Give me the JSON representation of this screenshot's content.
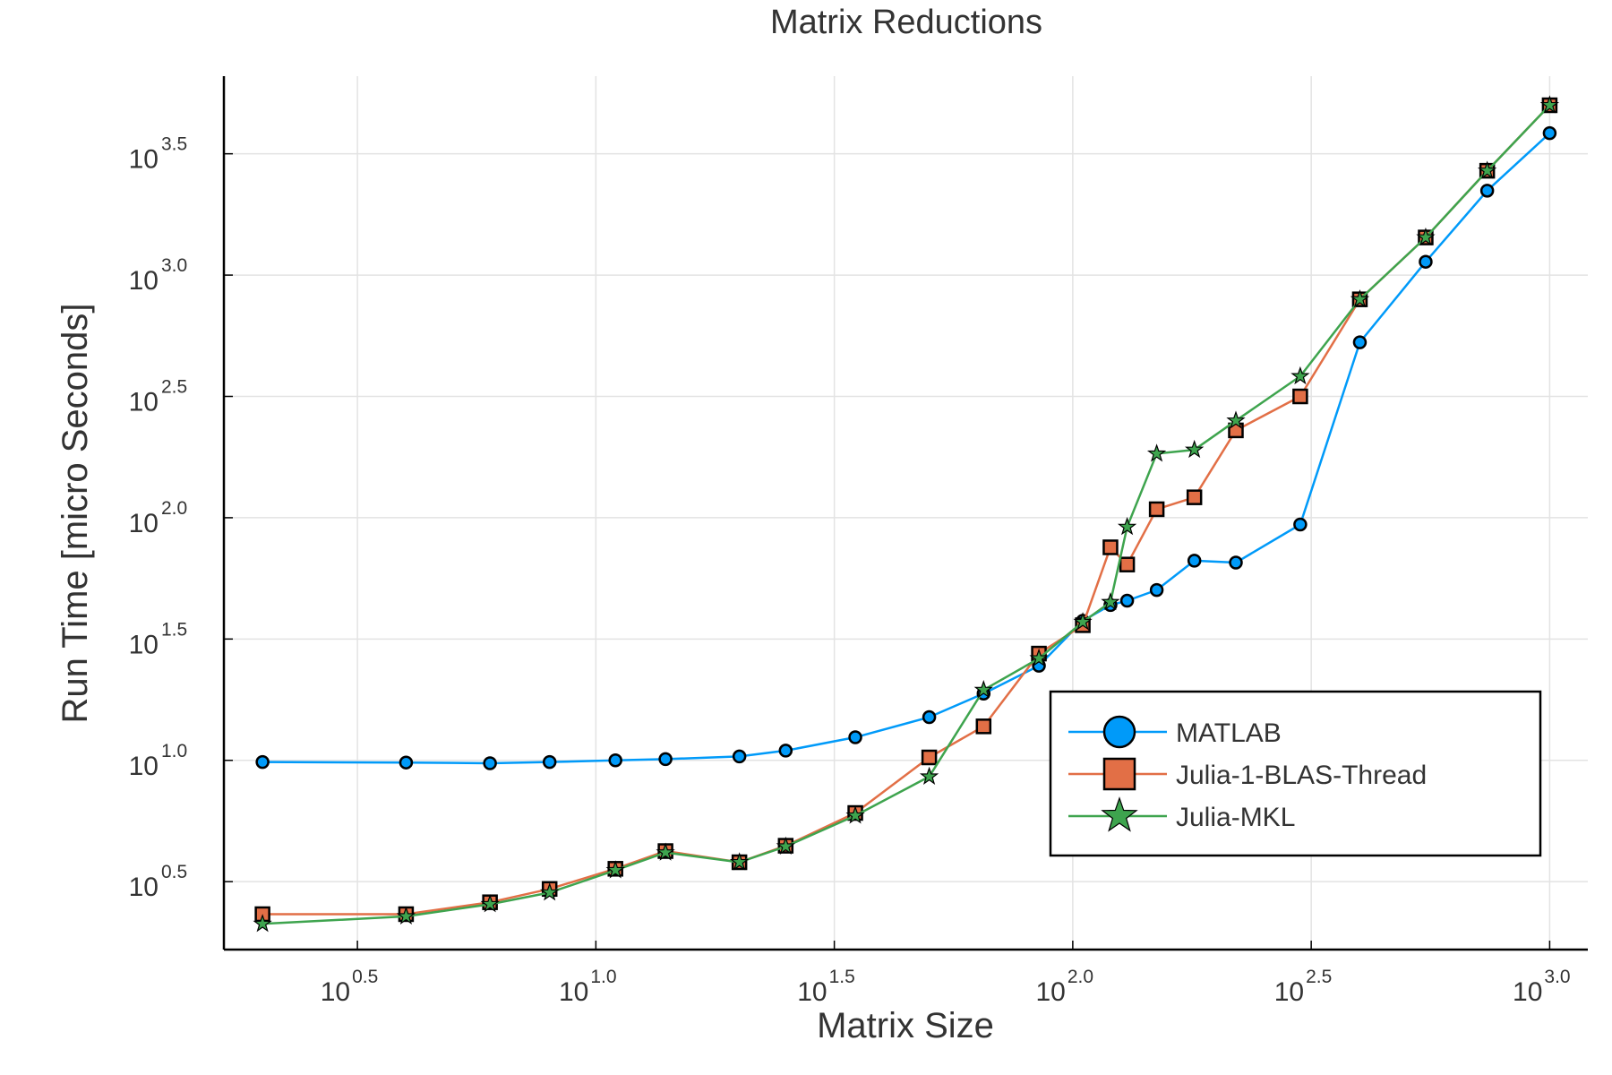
{
  "chart_data": {
    "type": "line",
    "title": "Matrix Reductions",
    "xlabel": "Matrix Size",
    "ylabel": "Run Time  [micro Seconds]",
    "xscale": "log10",
    "yscale": "log10",
    "xlim_log10": [
      0.22,
      3.08
    ],
    "ylim_log10": [
      0.22,
      3.82
    ],
    "x_ticks": [
      {
        "base": "10",
        "exp": "0.5",
        "value": 0.5
      },
      {
        "base": "10",
        "exp": "1.0",
        "value": 1.0
      },
      {
        "base": "10",
        "exp": "1.5",
        "value": 1.5
      },
      {
        "base": "10",
        "exp": "2.0",
        "value": 2.0
      },
      {
        "base": "10",
        "exp": "2.5",
        "value": 2.5
      },
      {
        "base": "10",
        "exp": "3.0",
        "value": 3.0
      }
    ],
    "y_ticks": [
      {
        "base": "10",
        "exp": "0.5",
        "value": 0.5
      },
      {
        "base": "10",
        "exp": "1.0",
        "value": 1.0
      },
      {
        "base": "10",
        "exp": "1.5",
        "value": 1.5
      },
      {
        "base": "10",
        "exp": "2.0",
        "value": 2.0
      },
      {
        "base": "10",
        "exp": "2.5",
        "value": 2.5
      },
      {
        "base": "10",
        "exp": "3.0",
        "value": 3.0
      },
      {
        "base": "10",
        "exp": "3.5",
        "value": 3.5
      }
    ],
    "grid": true,
    "legend_position": "bottom-right",
    "x_log10": [
      0.301,
      0.602,
      0.778,
      0.903,
      1.041,
      1.146,
      1.301,
      1.398,
      1.544,
      1.699,
      1.813,
      1.929,
      2.021,
      2.079,
      2.114,
      2.176,
      2.255,
      2.342,
      2.477,
      2.602,
      2.74,
      2.869,
      3.0
    ],
    "series": [
      {
        "name": "MATLAB",
        "color": "#009AF9",
        "marker": "circle",
        "y_log10": [
          0.993,
          0.991,
          0.988,
          0.993,
          1.0,
          1.005,
          1.016,
          1.04,
          1.095,
          1.178,
          1.275,
          1.39,
          1.575,
          1.64,
          1.658,
          1.702,
          1.823,
          1.815,
          1.972,
          2.723,
          3.055,
          3.348,
          3.585
        ]
      },
      {
        "name": "Julia-1-BLAS-Thread",
        "color": "#E26F46",
        "marker": "square",
        "y_log10": [
          0.366,
          0.366,
          0.415,
          0.47,
          0.553,
          0.626,
          0.58,
          0.648,
          0.783,
          1.012,
          1.14,
          1.44,
          1.557,
          1.878,
          1.807,
          2.035,
          2.084,
          2.36,
          2.5,
          2.9,
          3.155,
          3.43,
          3.7
        ]
      },
      {
        "name": "Julia-MKL",
        "color": "#3EA44E",
        "marker": "star",
        "y_log10": [
          0.326,
          0.357,
          0.407,
          0.455,
          0.547,
          0.62,
          0.58,
          0.645,
          0.772,
          0.933,
          1.29,
          1.42,
          1.57,
          1.652,
          1.962,
          2.264,
          2.28,
          2.4,
          2.583,
          2.9,
          3.155,
          3.43,
          3.7
        ]
      }
    ]
  }
}
